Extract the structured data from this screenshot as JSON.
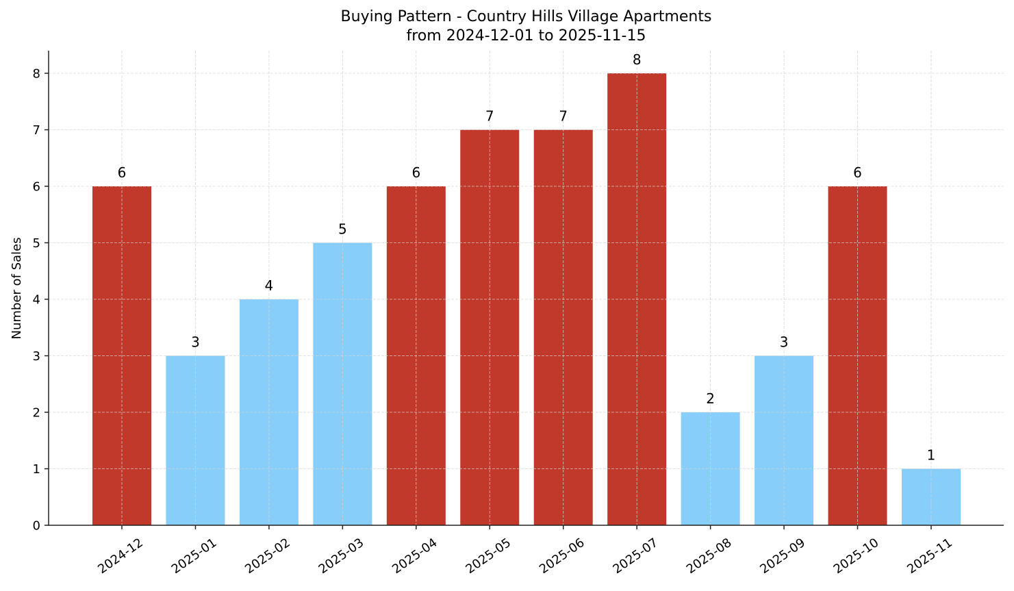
{
  "chart_data": {
    "type": "bar",
    "title": "Buying Pattern - Country Hills Village Apartments",
    "subtitle": "from 2024-12-01 to 2025-11-15",
    "xlabel": "",
    "ylabel": "Number of Sales",
    "ylim": [
      0,
      8.4
    ],
    "yticks": [
      0,
      1,
      2,
      3,
      4,
      5,
      6,
      7,
      8
    ],
    "grid": true,
    "legend": null,
    "categories": [
      "2024-12",
      "2025-01",
      "2025-02",
      "2025-03",
      "2025-04",
      "2025-05",
      "2025-06",
      "2025-07",
      "2025-08",
      "2025-09",
      "2025-10",
      "2025-11"
    ],
    "values": [
      6,
      3,
      4,
      5,
      6,
      7,
      7,
      8,
      2,
      3,
      6,
      1
    ],
    "bar_colors": [
      "#c0392b",
      "#87cefa",
      "#87cefa",
      "#87cefa",
      "#c0392b",
      "#c0392b",
      "#c0392b",
      "#c0392b",
      "#87cefa",
      "#87cefa",
      "#c0392b",
      "#87cefa"
    ],
    "colors": {
      "high": "#c0392b",
      "low": "#87cefa",
      "grid": "#d3d3d3",
      "axis": "#222222"
    }
  }
}
